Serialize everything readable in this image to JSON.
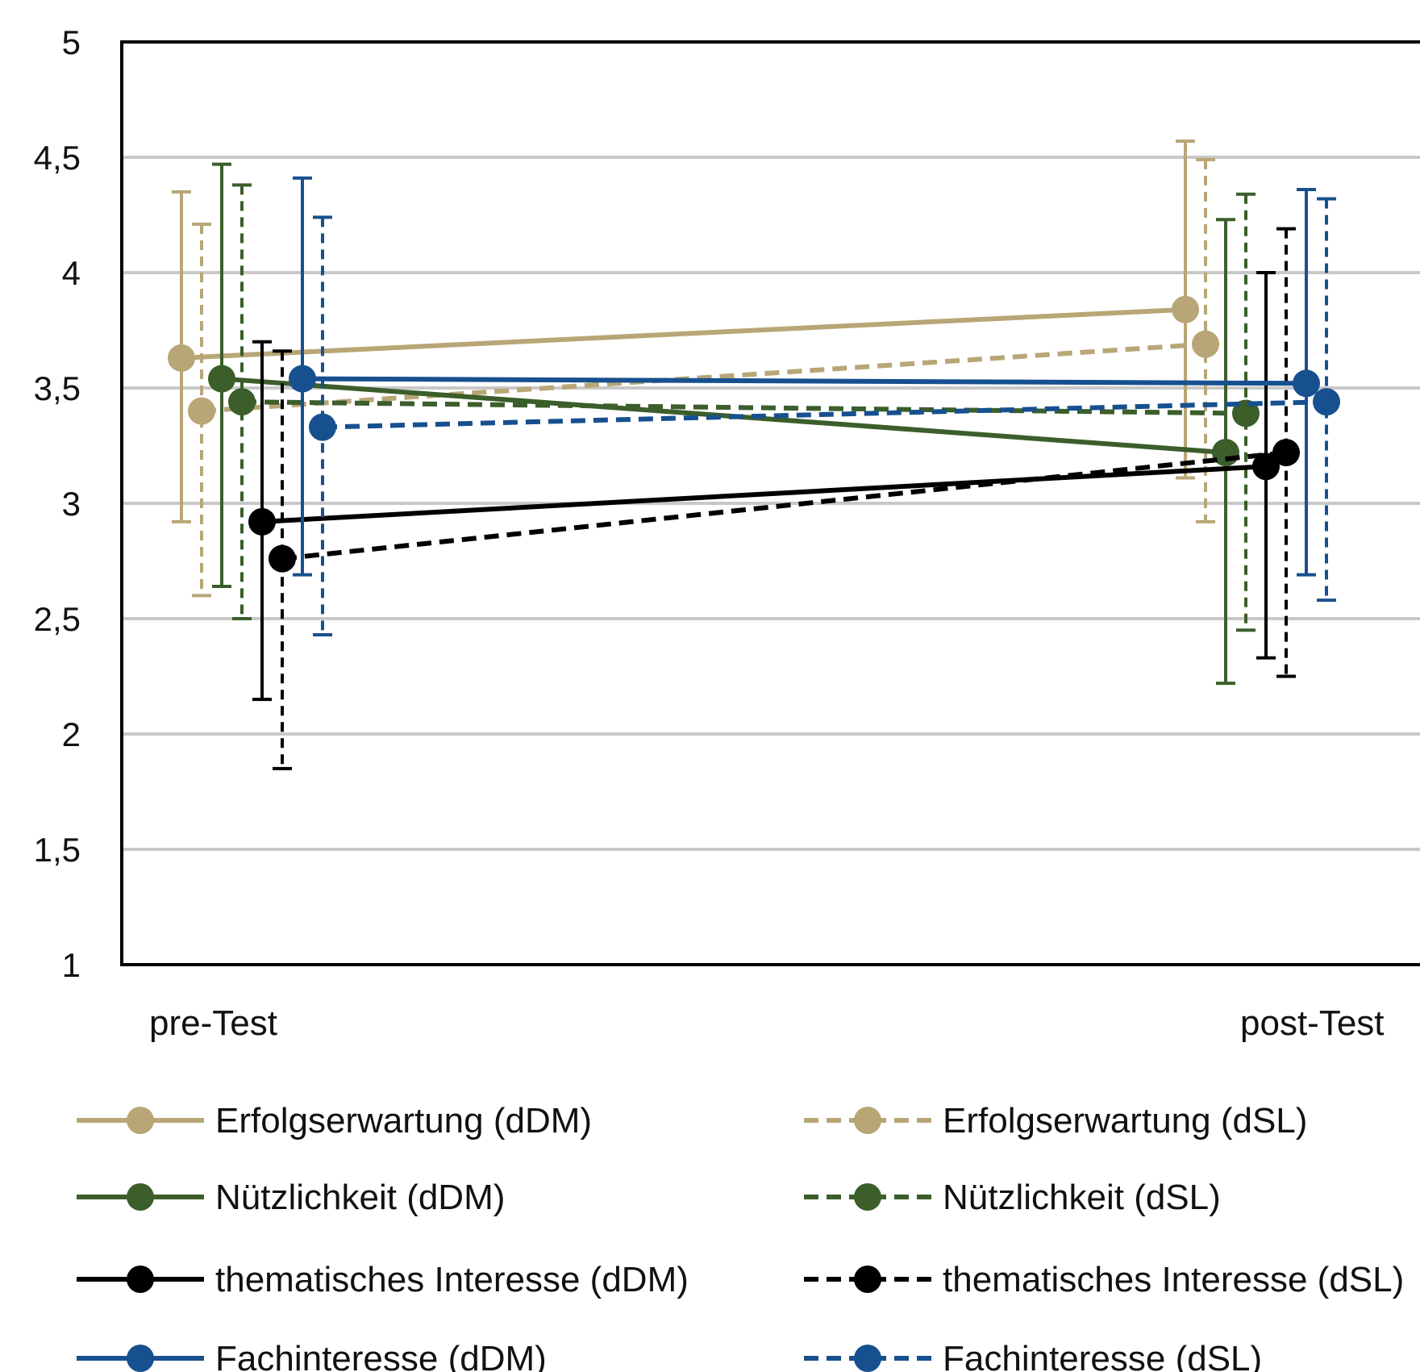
{
  "chart_data": {
    "type": "line",
    "categories": [
      "pre-Test",
      "post-Test"
    ],
    "ylim": [
      1,
      5
    ],
    "yticks": [
      {
        "value": 1,
        "label": "1"
      },
      {
        "value": 1.5,
        "label": "1,5"
      },
      {
        "value": 2,
        "label": "2"
      },
      {
        "value": 2.5,
        "label": "2,5"
      },
      {
        "value": 3,
        "label": "3"
      },
      {
        "value": 3.5,
        "label": "3,5"
      },
      {
        "value": 4,
        "label": "4"
      },
      {
        "value": 4.5,
        "label": "4,5"
      },
      {
        "value": 5,
        "label": "5"
      }
    ],
    "grid": true,
    "error_bars": true,
    "legend_position": "bottom",
    "series": [
      {
        "name": "Erfolgserwartung (dDM)",
        "color": "#b8a676",
        "dashed": false,
        "values": [
          3.63,
          3.84
        ],
        "error_low": [
          2.92,
          3.11
        ],
        "error_high": [
          4.35,
          4.57
        ]
      },
      {
        "name": "Erfolgserwartung (dSL)",
        "color": "#b8a676",
        "dashed": true,
        "values": [
          3.4,
          3.69
        ],
        "error_low": [
          2.6,
          2.92
        ],
        "error_high": [
          4.21,
          4.49
        ]
      },
      {
        "name": "Nützlichkeit (dDM)",
        "color": "#3b5e2b",
        "dashed": false,
        "values": [
          3.54,
          3.22
        ],
        "error_low": [
          2.64,
          2.22
        ],
        "error_high": [
          4.47,
          4.23
        ]
      },
      {
        "name": "Nützlichkeit (dSL)",
        "color": "#3b5e2b",
        "dashed": true,
        "values": [
          3.44,
          3.39
        ],
        "error_low": [
          2.5,
          2.45
        ],
        "error_high": [
          4.38,
          4.34
        ]
      },
      {
        "name": "thematisches Interesse (dDM)",
        "color": "#000000",
        "dashed": false,
        "values": [
          2.92,
          3.16
        ],
        "error_low": [
          2.15,
          2.33
        ],
        "error_high": [
          3.7,
          4.0
        ]
      },
      {
        "name": "thematisches Interesse (dSL)",
        "color": "#000000",
        "dashed": true,
        "values": [
          2.76,
          3.22
        ],
        "error_low": [
          1.85,
          2.25
        ],
        "error_high": [
          3.66,
          4.19
        ]
      },
      {
        "name": "Fachinteresse (dDM)",
        "color": "#17508f",
        "dashed": false,
        "values": [
          3.54,
          3.52
        ],
        "error_low": [
          2.69,
          2.69
        ],
        "error_high": [
          4.41,
          4.36
        ]
      },
      {
        "name": "Fachinteresse (dSL)",
        "color": "#17508f",
        "dashed": true,
        "values": [
          3.33,
          3.44
        ],
        "error_low": [
          2.43,
          2.58
        ],
        "error_high": [
          4.24,
          4.32
        ]
      }
    ]
  }
}
